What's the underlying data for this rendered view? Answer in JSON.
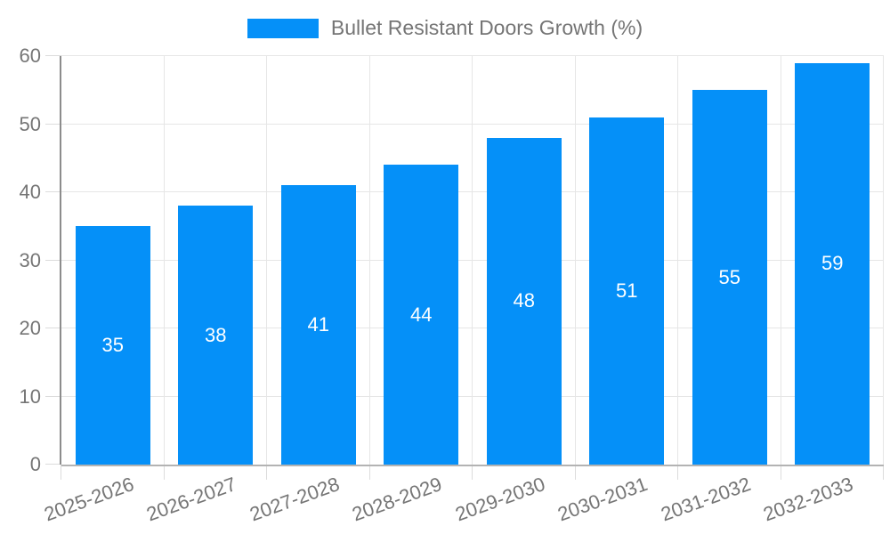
{
  "chart_data": {
    "type": "bar",
    "title": "",
    "legend_label": "Bullet Resistant Doors Growth (%)",
    "legend_position": "top-center",
    "categories": [
      "2025-2026",
      "2026-2027",
      "2027-2028",
      "2028-2029",
      "2029-2030",
      "2030-2031",
      "2031-2032",
      "2032-2033"
    ],
    "values": [
      35,
      38,
      41,
      44,
      48,
      51,
      55,
      59
    ],
    "value_labels_position": "inside-center",
    "xlabel": "",
    "ylabel": "",
    "ylim": [
      0,
      60
    ],
    "yticks": [
      0,
      10,
      20,
      30,
      40,
      50,
      60
    ],
    "grid": "horizontal-and-vertical",
    "x_label_rotation_deg": -20
  },
  "colors": {
    "bar": "#0590f8",
    "legend_swatch": "#0590f8",
    "value_label_text": "#ffffff",
    "axis_text": "#757575",
    "gridline": "#e6e6e6",
    "tick": "#dcdcdc",
    "y_axis_line": "#8c8c8c",
    "x_axis_line": "#b3b3b3",
    "background": "#ffffff"
  }
}
